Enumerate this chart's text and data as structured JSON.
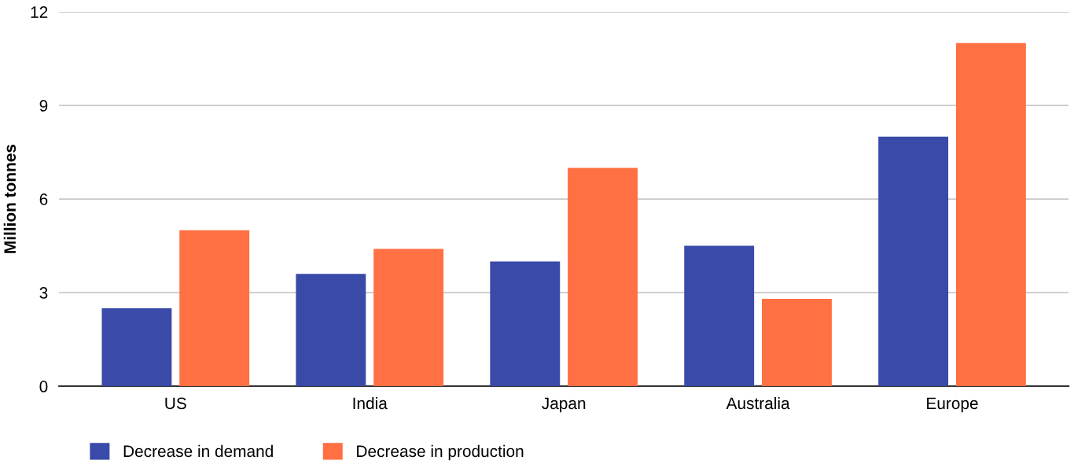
{
  "chart_data": {
    "type": "bar",
    "ylabel": "Million tonnes",
    "categories": [
      "US",
      "India",
      "Japan",
      "Australia",
      "Europe"
    ],
    "series": [
      {
        "name": "Decrease in demand",
        "color": "#3a4aa8",
        "values": [
          2.5,
          3.6,
          4.0,
          4.5,
          8.0
        ]
      },
      {
        "name": "Decrease in production",
        "color": "#ff7043",
        "values": [
          5.0,
          4.4,
          7.0,
          2.8,
          11.0
        ]
      }
    ],
    "ylim": [
      0,
      12
    ],
    "yticks": [
      0,
      3,
      6,
      9,
      12
    ],
    "grid": "y",
    "legend": "bottom left"
  }
}
